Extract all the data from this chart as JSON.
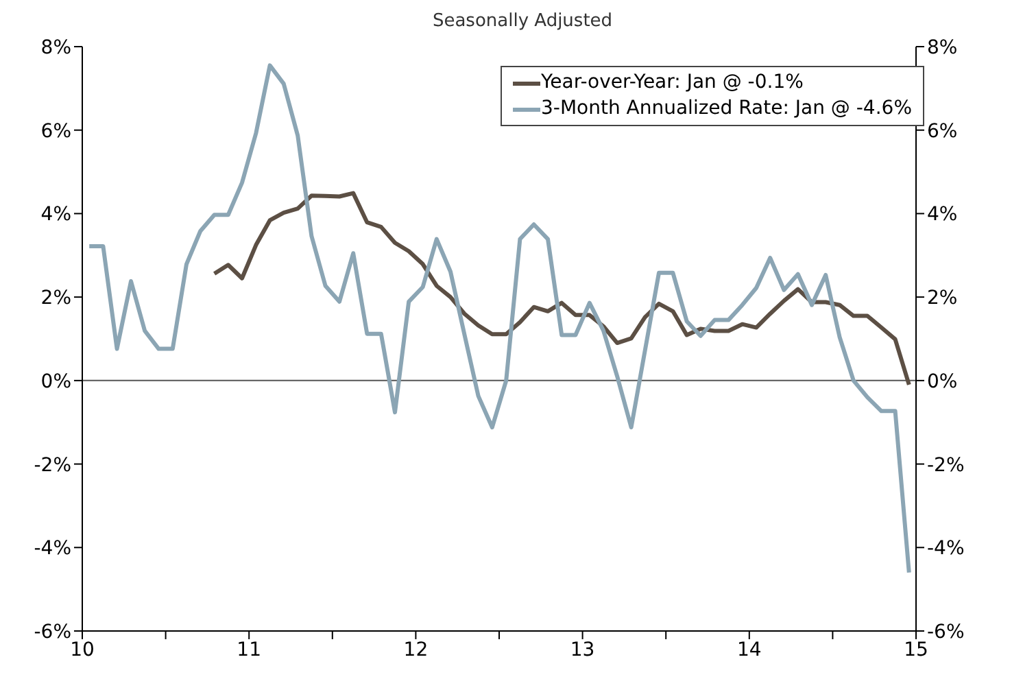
{
  "chart_data": {
    "type": "line",
    "subtitle": "Seasonally Adjusted",
    "x": [
      10.042,
      10.125,
      10.208,
      10.292,
      10.375,
      10.458,
      10.542,
      10.625,
      10.708,
      10.792,
      10.875,
      10.958,
      11.042,
      11.125,
      11.208,
      11.292,
      11.375,
      11.458,
      11.542,
      11.625,
      11.708,
      11.792,
      11.875,
      11.958,
      12.042,
      12.125,
      12.208,
      12.292,
      12.375,
      12.458,
      12.542,
      12.625,
      12.708,
      12.792,
      12.875,
      12.958,
      13.042,
      13.125,
      13.208,
      13.292,
      13.375,
      13.458,
      13.542,
      13.625,
      13.708,
      13.792,
      13.875,
      13.958,
      14.042,
      14.125,
      14.208,
      14.292,
      14.375,
      14.458,
      14.542,
      14.625,
      14.708,
      14.792,
      14.875,
      14.958
    ],
    "series": [
      {
        "name": "Year-over-Year: Jan @ -0.1%",
        "color": "#5c4f44",
        "values": [
          null,
          null,
          null,
          null,
          null,
          null,
          null,
          null,
          null,
          2.56,
          2.77,
          2.45,
          3.25,
          3.84,
          4.02,
          4.12,
          4.43,
          4.42,
          4.41,
          4.49,
          3.79,
          3.68,
          3.3,
          3.1,
          2.79,
          2.27,
          2.0,
          1.6,
          1.32,
          1.11,
          1.11,
          1.4,
          1.76,
          1.66,
          1.86,
          1.57,
          1.57,
          1.3,
          0.9,
          1.01,
          1.52,
          1.84,
          1.66,
          1.09,
          1.24,
          1.19,
          1.19,
          1.35,
          1.27,
          1.6,
          1.91,
          2.19,
          1.88,
          1.88,
          1.81,
          1.55,
          1.55,
          1.27,
          0.99,
          -0.1
        ]
      },
      {
        "name": "3-Month Annualized Rate: Jan @ -4.6%",
        "color": "#8ba5b4",
        "values": [
          3.22,
          3.22,
          0.76,
          2.38,
          1.19,
          0.76,
          0.76,
          2.79,
          3.58,
          3.97,
          3.97,
          4.74,
          5.93,
          7.55,
          7.11,
          5.87,
          3.46,
          2.27,
          1.89,
          3.05,
          1.12,
          1.12,
          -0.76,
          1.89,
          2.24,
          3.39,
          2.61,
          1.1,
          -0.37,
          -1.12,
          0.0,
          3.39,
          3.74,
          3.39,
          1.09,
          1.09,
          1.86,
          1.2,
          0.1,
          -1.12,
          0.73,
          2.58,
          2.58,
          1.42,
          1.07,
          1.45,
          1.45,
          1.81,
          2.22,
          2.94,
          2.17,
          2.55,
          1.81,
          2.53,
          1.04,
          0.0,
          -0.4,
          -0.73,
          -0.73,
          -4.6
        ]
      }
    ],
    "xlim": [
      10,
      15
    ],
    "xticks": [
      10,
      {
        "value": 10.5,
        "label": null
      },
      11,
      {
        "value": 11.5,
        "label": null
      },
      12,
      {
        "value": 12.5,
        "label": null
      },
      13,
      {
        "value": 13.5,
        "label": null
      },
      14,
      {
        "value": 14.5,
        "label": null
      },
      15
    ],
    "ylim": [
      -6,
      8
    ],
    "yticks": [
      {
        "value": -6,
        "label": "-6%"
      },
      {
        "value": -4,
        "label": "-4%"
      },
      {
        "value": -2,
        "label": "-2%"
      },
      {
        "value": 0,
        "label": "0%"
      },
      {
        "value": 2,
        "label": "2%"
      },
      {
        "value": 4,
        "label": "4%"
      },
      {
        "value": 6,
        "label": "6%"
      },
      {
        "value": 8,
        "label": "8%"
      }
    ],
    "y2lim": [
      -6,
      8
    ],
    "y2ticks": [
      {
        "value": -6,
        "label": "-6%"
      },
      {
        "value": -4,
        "label": "-4%"
      },
      {
        "value": -2,
        "label": "-2%"
      },
      {
        "value": 0,
        "label": "0%"
      },
      {
        "value": 2,
        "label": "2%"
      },
      {
        "value": 4,
        "label": "4%"
      },
      {
        "value": 6,
        "label": "6%"
      },
      {
        "value": 8,
        "label": "8%"
      }
    ],
    "ref_lines": [
      {
        "axis": "y",
        "value": 0,
        "color": "#555555"
      }
    ],
    "legend": "top right",
    "grid": false,
    "marker": "none",
    "line_style": "solid"
  }
}
